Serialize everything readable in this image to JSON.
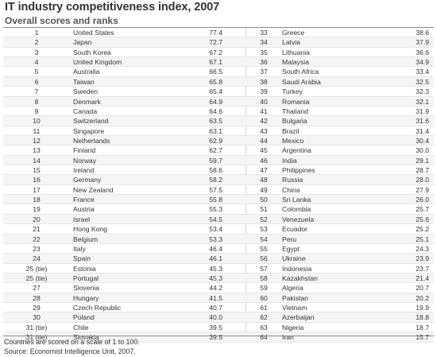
{
  "chart_data": {
    "type": "table",
    "title": "IT industry competitiveness index, 2007",
    "subtitle": "Overall scores and ranks",
    "rows": [
      {
        "rank": "1",
        "country": "United States",
        "score": "77.4"
      },
      {
        "rank": "2",
        "country": "Japan",
        "score": "72.7"
      },
      {
        "rank": "3",
        "country": "South Korea",
        "score": "67.2"
      },
      {
        "rank": "4",
        "country": "United Kingdom",
        "score": "67.1"
      },
      {
        "rank": "5",
        "country": "Australia",
        "score": "66.5"
      },
      {
        "rank": "6",
        "country": "Taiwan",
        "score": "65.8"
      },
      {
        "rank": "7",
        "country": "Sweden",
        "score": "65.4"
      },
      {
        "rank": "8",
        "country": "Denmark",
        "score": "64.9"
      },
      {
        "rank": "9",
        "country": "Canada",
        "score": "64.6"
      },
      {
        "rank": "10",
        "country": "Switzerland",
        "score": "63.5"
      },
      {
        "rank": "11",
        "country": "Singapore",
        "score": "63.1"
      },
      {
        "rank": "12",
        "country": "Netherlands",
        "score": "62.9"
      },
      {
        "rank": "13",
        "country": "Finland",
        "score": "62.7"
      },
      {
        "rank": "14",
        "country": "Norway",
        "score": "59.7"
      },
      {
        "rank": "15",
        "country": "Ireland",
        "score": "58.6"
      },
      {
        "rank": "16",
        "country": "Germany",
        "score": "58.2"
      },
      {
        "rank": "17",
        "country": "New Zealand",
        "score": "57.5"
      },
      {
        "rank": "18",
        "country": "France",
        "score": "55.8"
      },
      {
        "rank": "19",
        "country": "Austria",
        "score": "55.3"
      },
      {
        "rank": "20",
        "country": "Israel",
        "score": "54.5"
      },
      {
        "rank": "21",
        "country": "Hong Kong",
        "score": "53.4"
      },
      {
        "rank": "22",
        "country": "Belgium",
        "score": "53.3"
      },
      {
        "rank": "23",
        "country": "Italy",
        "score": "46.4"
      },
      {
        "rank": "24",
        "country": "Spain",
        "score": "46.1"
      },
      {
        "rank": "25 (tie)",
        "country": "Estonia",
        "score": "45.3"
      },
      {
        "rank": "25 (tie)",
        "country": "Portugal",
        "score": "45.3"
      },
      {
        "rank": "27",
        "country": "Slovenia",
        "score": "44.2"
      },
      {
        "rank": "28",
        "country": "Hungary",
        "score": "41.5"
      },
      {
        "rank": "29",
        "country": "Czech Republic",
        "score": "40.7"
      },
      {
        "rank": "30",
        "country": "Poland",
        "score": "40.0"
      },
      {
        "rank": "31 (tie)",
        "country": "Chile",
        "score": "39.5"
      },
      {
        "rank": "31 (tie)",
        "country": "Slovakia",
        "score": "39.5"
      },
      {
        "rank": "33",
        "country": "Greece",
        "score": "38.6"
      },
      {
        "rank": "34",
        "country": "Latvia",
        "score": "37.9"
      },
      {
        "rank": "35",
        "country": "Lithuania",
        "score": "36.6"
      },
      {
        "rank": "36",
        "country": "Malaysia",
        "score": "34.9"
      },
      {
        "rank": "37",
        "country": "South Africa",
        "score": "33.4"
      },
      {
        "rank": "38",
        "country": "Saudi Arabia",
        "score": "32.5"
      },
      {
        "rank": "39",
        "country": "Turkey",
        "score": "32.3"
      },
      {
        "rank": "40",
        "country": "Romania",
        "score": "32.1"
      },
      {
        "rank": "41",
        "country": "Thailand",
        "score": "31.9"
      },
      {
        "rank": "42",
        "country": "Bulgaria",
        "score": "31.6"
      },
      {
        "rank": "43",
        "country": "Brazil",
        "score": "31.4"
      },
      {
        "rank": "44",
        "country": "Mexico",
        "score": "30.4"
      },
      {
        "rank": "45",
        "country": "Argentina",
        "score": "30.0"
      },
      {
        "rank": "46",
        "country": "India",
        "score": "29.1"
      },
      {
        "rank": "47",
        "country": "Philippines",
        "score": "28.7"
      },
      {
        "rank": "48",
        "country": "Russia",
        "score": "28.0"
      },
      {
        "rank": "49",
        "country": "China",
        "score": "27.9"
      },
      {
        "rank": "50",
        "country": "Sri Lanka",
        "score": "26.0"
      },
      {
        "rank": "51",
        "country": "Colombia",
        "score": "25.7"
      },
      {
        "rank": "52",
        "country": "Venezuela",
        "score": "25.6"
      },
      {
        "rank": "53",
        "country": "Ecuador",
        "score": "25.2"
      },
      {
        "rank": "54",
        "country": "Peru",
        "score": "25.1"
      },
      {
        "rank": "55",
        "country": "Egypt",
        "score": "24.3"
      },
      {
        "rank": "56",
        "country": "Ukraine",
        "score": "23.9"
      },
      {
        "rank": "57",
        "country": "Indonesia",
        "score": "23.7"
      },
      {
        "rank": "58",
        "country": "Kazakhstan",
        "score": "21.4"
      },
      {
        "rank": "59",
        "country": "Algeria",
        "score": "20.7"
      },
      {
        "rank": "60",
        "country": "Pakistan",
        "score": "20.2"
      },
      {
        "rank": "61",
        "country": "Vietnam",
        "score": "19.9"
      },
      {
        "rank": "62",
        "country": "Azerbaijan",
        "score": "18.8"
      },
      {
        "rank": "63",
        "country": "Nigeria",
        "score": "18.7"
      },
      {
        "rank": "64",
        "country": "Iran",
        "score": "15.7"
      }
    ],
    "notes": [
      "Countries are scored on a scale of 1 to 100.",
      "Source: Economist Intelligence Unit, 2007."
    ]
  }
}
